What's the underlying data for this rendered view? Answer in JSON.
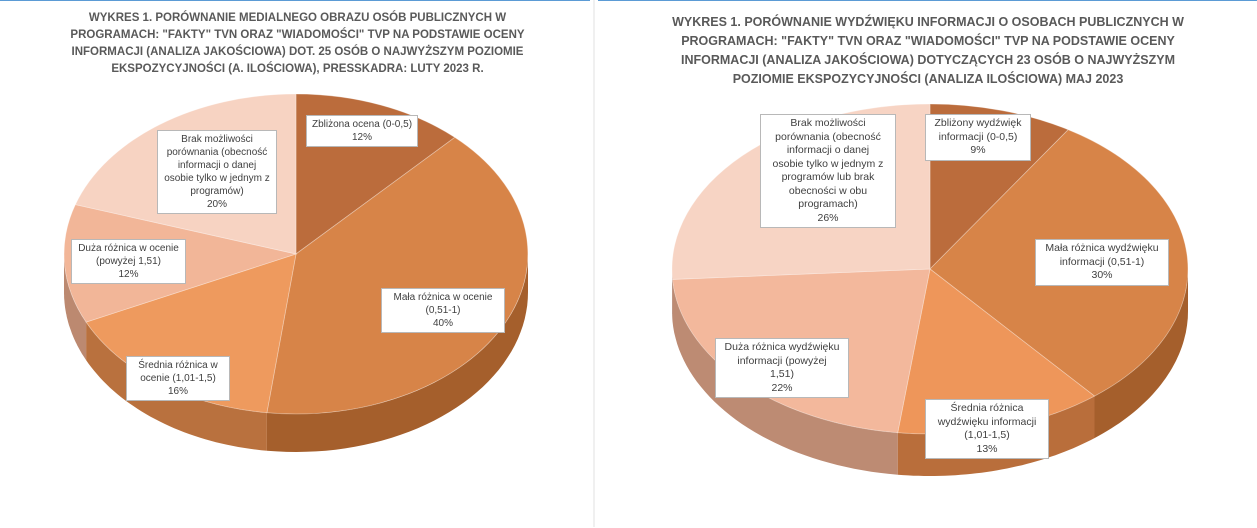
{
  "chart_data": [
    {
      "type": "pie",
      "title_lines": [
        "WYKRES 1. PORÓWNANIE MEDIALNEGO OBRAZU OSÓB PUBLICZNYCH W",
        "PROGRAMACH: \"FAKTY\" TVN ORAZ \"WIADOMOŚCI\" TVP NA PODSTAWIE OCENY",
        "INFORMACJI (ANALIZA JAKOŚCIOWA) DOT. 25 OSÓB O NAJWYŻSZYM POZIOMIE",
        "EKSPOZYCYJNOŚCI (A. ILOŚCIOWA), PRESSKADRA: LUTY 2023 R."
      ],
      "slices": [
        {
          "label_lines": [
            "Zbliżona ocena (0-0,5)"
          ],
          "value": 12,
          "value_label": "12%",
          "color": "#b5602b"
        },
        {
          "label_lines": [
            "Mała różnica w ocenie",
            "(0,51-1)"
          ],
          "value": 40,
          "value_label": "40%",
          "color": "#d47a38"
        },
        {
          "label_lines": [
            "Średnia różnica w",
            "ocenie (1,01-1,5)"
          ],
          "value": 16,
          "value_label": "16%",
          "color": "#ed9150"
        },
        {
          "label_lines": [
            "Duża różnica w ocenie",
            "(powyżej 1,51)"
          ],
          "value": 12,
          "value_label": "12%",
          "color": "#f1b08f"
        },
        {
          "label_lines": [
            "Brak możliwości",
            "porównania (obecność",
            "informacji o danej",
            "osobie tylko w jednym z",
            "programów)"
          ],
          "value": 20,
          "value_label": "20%",
          "color": "#f6cfbd"
        }
      ]
    },
    {
      "type": "pie",
      "title_lines": [
        "WYKRES 1. PORÓWNANIE WYDŹWIĘKU INFORMACJI O OSOBACH PUBLICZNYCH W",
        "PROGRAMACH: \"FAKTY\" TVN ORAZ \"WIADOMOŚCI\" TVP NA PODSTAWIE OCENY",
        "INFORMACJI (ANALIZA JAKOŚCIOWA) DOTYCZĄCYCH 23 OSÓB O NAJWYŻSZYM",
        "POZIOMIE EKSPOZYCYJNOŚCI (ANALIZA ILOŚCIOWA) MAJ 2023"
      ],
      "slices": [
        {
          "label_lines": [
            "Zbliżony wydźwięk",
            "informacji (0-0,5)"
          ],
          "value": 9,
          "value_label": "9%",
          "color": "#b5602b"
        },
        {
          "label_lines": [
            "Mała różnica wydźwięku",
            "informacji  (0,51-1)"
          ],
          "value": 30,
          "value_label": "30%",
          "color": "#d47a38"
        },
        {
          "label_lines": [
            "Średnia różnica",
            "wydźwięku informacji",
            "(1,01-1,5)"
          ],
          "value": 13,
          "value_label": "13%",
          "color": "#ed8d4c"
        },
        {
          "label_lines": [
            "Duża różnica wydźwięku",
            "informacji  (powyżej",
            "1,51)"
          ],
          "value": 22,
          "value_label": "22%",
          "color": "#f2b294"
        },
        {
          "label_lines": [
            "Brak możliwości",
            "porównania (obecność",
            "informacji o danej",
            "osobie tylko w jednym z",
            "programów lub brak",
            "obecności w obu",
            "programach)"
          ],
          "value": 26,
          "value_label": "26%",
          "color": "#f6d0bf"
        }
      ]
    }
  ]
}
